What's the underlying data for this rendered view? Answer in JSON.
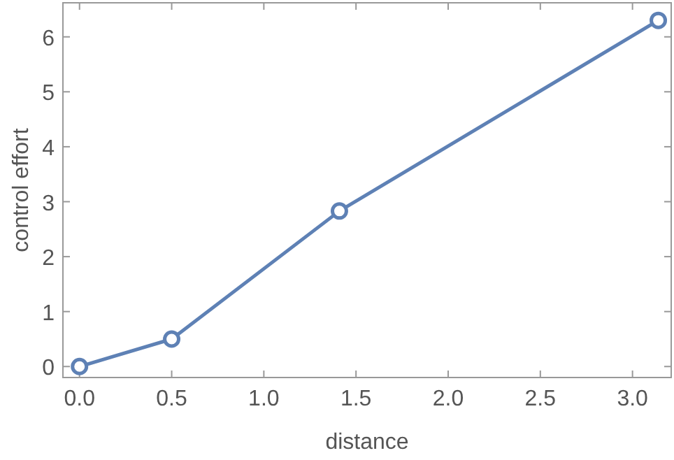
{
  "chart_data": {
    "type": "line",
    "xlabel": "distance",
    "ylabel": "control effort",
    "x": [
      0,
      0.5,
      1.41,
      3.14
    ],
    "series": [
      {
        "color": "#5e81b5",
        "values": [
          0,
          0.5,
          2.83,
          6.3
        ]
      }
    ],
    "xlim": [
      -0.09,
      3.21
    ],
    "ylim": [
      -0.2,
      6.62
    ],
    "xticks": [
      {
        "value": 0,
        "label": "0.0"
      },
      {
        "value": 0.5,
        "label": "0.5"
      },
      {
        "value": 1,
        "label": "1.0"
      },
      {
        "value": 1.5,
        "label": "1.5"
      },
      {
        "value": 2,
        "label": "2.0"
      },
      {
        "value": 2.5,
        "label": "2.5"
      },
      {
        "value": 3,
        "label": "3.0"
      }
    ],
    "yticks": [
      0,
      1,
      2,
      3,
      4,
      5,
      6
    ],
    "marker": "circle",
    "line_style": "solid"
  }
}
